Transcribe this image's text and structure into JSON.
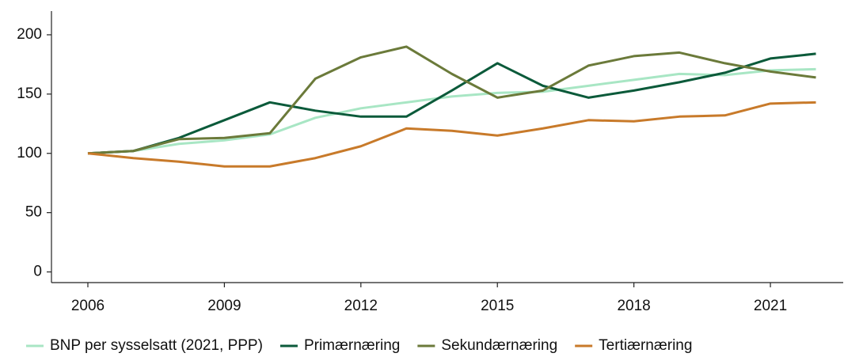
{
  "chart_data": {
    "type": "line",
    "x": [
      2006,
      2007,
      2008,
      2009,
      2010,
      2011,
      2012,
      2013,
      2014,
      2015,
      2016,
      2017,
      2018,
      2019,
      2020,
      2021,
      2022
    ],
    "series": [
      {
        "name": "BNP per sysselsatt (2021, PPP)",
        "color": "#a8e6c4",
        "values": [
          100,
          102,
          108,
          111,
          116,
          130,
          138,
          143,
          148,
          151,
          152,
          157,
          162,
          167,
          166,
          170,
          171
        ]
      },
      {
        "name": "Primærnæring",
        "color": "#0b5a3a",
        "values": [
          100,
          102,
          113,
          128,
          143,
          136,
          131,
          131,
          153,
          176,
          157,
          147,
          153,
          160,
          168,
          180,
          184
        ]
      },
      {
        "name": "Sekundærnæring",
        "color": "#6b7a3a",
        "values": [
          100,
          102,
          112,
          113,
          117,
          163,
          181,
          190,
          167,
          147,
          153,
          174,
          182,
          185,
          176,
          169,
          164
        ]
      },
      {
        "name": "Tertiærnæring",
        "color": "#c87a2a",
        "values": [
          100,
          96,
          93,
          89,
          89,
          96,
          106,
          121,
          119,
          115,
          121,
          128,
          127,
          131,
          132,
          142,
          143
        ]
      }
    ],
    "xlim": [
      2005.2,
      2022.6
    ],
    "xticks": [
      2006,
      2009,
      2012,
      2015,
      2018,
      2021
    ],
    "ylim": [
      -9,
      220
    ],
    "yticks": [
      0,
      50,
      100,
      150,
      200
    ],
    "grid": false,
    "legend": "bottom"
  }
}
